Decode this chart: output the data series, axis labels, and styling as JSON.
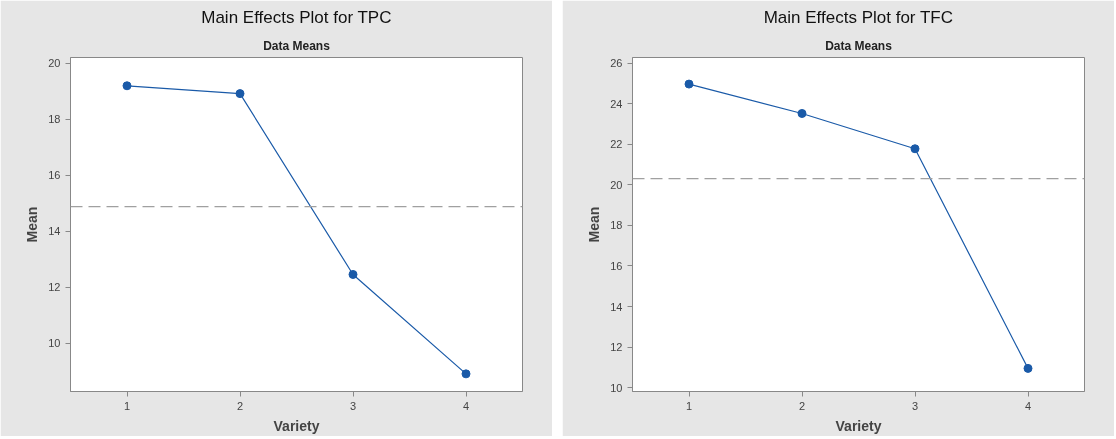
{
  "chart_data": [
    {
      "type": "line",
      "title": "Main Effects Plot for TPC",
      "subtitle": "Data Means",
      "xlabel": "Variety",
      "ylabel": "Mean",
      "x": [
        1,
        2,
        3,
        4
      ],
      "xlim": [
        0.5,
        4.5
      ],
      "xticks": [
        1,
        2,
        3,
        4
      ],
      "ylim": [
        8.27,
        20.2
      ],
      "yticks": [
        10,
        12,
        14,
        16,
        18,
        20
      ],
      "series": [
        {
          "color": "#1a5aa8",
          "values": [
            19.19,
            18.91,
            12.45,
            8.9
          ]
        }
      ],
      "ref_lines": [
        {
          "axis": "y",
          "value": 14.87,
          "color": "#a0a0a0",
          "line_style": "dashed"
        }
      ],
      "marker": "circle",
      "line_style": "solid",
      "grid": false
    },
    {
      "type": "line",
      "title": "Main Effects Plot for TFC",
      "subtitle": "Data Means",
      "xlabel": "Variety",
      "ylabel": "Mean",
      "x": [
        1,
        2,
        3,
        4
      ],
      "xlim": [
        0.5,
        4.5
      ],
      "xticks": [
        1,
        2,
        3,
        4
      ],
      "ylim": [
        9.81,
        26.28
      ],
      "yticks": [
        10,
        12,
        14,
        16,
        18,
        20,
        22,
        24,
        26
      ],
      "series": [
        {
          "color": "#1a5aa8",
          "values": [
            24.97,
            23.52,
            21.78,
            10.95
          ]
        }
      ],
      "ref_lines": [
        {
          "axis": "y",
          "value": 20.31,
          "color": "#a0a0a0",
          "line_style": "dashed"
        }
      ],
      "marker": "circle",
      "line_style": "solid",
      "grid": false
    }
  ]
}
